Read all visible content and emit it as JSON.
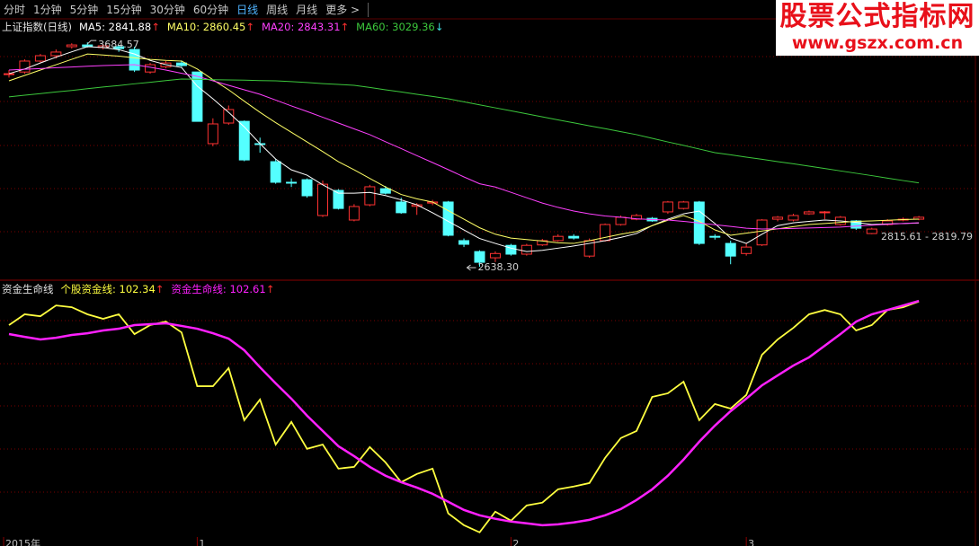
{
  "toolbar": {
    "tabs": [
      "分时",
      "1分钟",
      "5分钟",
      "15分钟",
      "30分钟",
      "60分钟",
      "日线",
      "周线",
      "月线",
      "更多 >"
    ],
    "active": 6
  },
  "watermark": {
    "title": "股票公式指标网",
    "url": "www.gszx.com.cn"
  },
  "chart_data": [
    {
      "type": "candlestick",
      "title": "上证指数(日线)",
      "categories": [
        "2015年",
        null,
        null,
        null,
        null,
        null,
        null,
        null,
        null,
        null,
        null,
        null,
        "1",
        null,
        null,
        null,
        null,
        null,
        null,
        null,
        null,
        null,
        null,
        null,
        null,
        null,
        null,
        null,
        null,
        null,
        null,
        null,
        "2",
        null,
        null,
        null,
        null,
        null,
        null,
        null,
        null,
        null,
        null,
        null,
        null,
        null,
        null,
        "3",
        null,
        null,
        null,
        null,
        null,
        null,
        null,
        null,
        null,
        null,
        null
      ],
      "open": [
        3534,
        3546,
        3597,
        3622,
        3664,
        3672,
        3660,
        3664,
        3651,
        3546,
        3570,
        3588,
        3546,
        3212,
        3308,
        3316,
        3212,
        3128,
        3032,
        3044,
        2877,
        2994,
        2856,
        2927,
        3002,
        2940,
        2920,
        2935,
        2940,
        2760,
        2709,
        2680,
        2738,
        2697,
        2740,
        2760,
        2780,
        2688,
        2760,
        2835,
        2860,
        2864,
        2894,
        2910,
        2940,
        2780,
        2747,
        2700,
        2740,
        2860,
        2856,
        2885,
        2890,
        2835,
        2852,
        2793,
        2835,
        2856,
        2860
      ],
      "high": [
        3555,
        3605,
        3630,
        3651,
        3680,
        3684.57,
        3676,
        3672,
        3664,
        3588,
        3597,
        3600,
        3546,
        3330,
        3390,
        3320,
        3240,
        3140,
        3050,
        3050,
        3040,
        3000,
        2930,
        3020,
        3015,
        2960,
        2935,
        2950,
        2945,
        2770,
        2715,
        2710,
        2745,
        2745,
        2768,
        2790,
        2790,
        2770,
        2840,
        2877,
        2885,
        2870,
        2945,
        2945,
        2945,
        2790,
        2760,
        2745,
        2860,
        2875,
        2885,
        2900,
        2898,
        2875,
        2856,
        2820,
        2860,
        2868,
        2875
      ],
      "low": [
        3520,
        3538,
        3590,
        3609,
        3655,
        3660,
        3651,
        3640,
        3546,
        3538,
        3563,
        3570,
        3316,
        3200,
        3300,
        3130,
        3170,
        3025,
        3010,
        2960,
        2870,
        2905,
        2850,
        2920,
        2975,
        2885,
        2880,
        2925,
        2780,
        2730,
        2638.3,
        2660,
        2690,
        2690,
        2735,
        2755,
        2765,
        2680,
        2755,
        2830,
        2855,
        2848,
        2885,
        2905,
        2740,
        2765,
        2650,
        2690,
        2735,
        2850,
        2850,
        2880,
        2860,
        2830,
        2810,
        2790,
        2830,
        2850,
        2855
      ],
      "close": [
        3538,
        3597,
        3622,
        3639,
        3672,
        3664,
        3668,
        3655,
        3555,
        3580,
        3588,
        3576,
        3316,
        3304,
        3371,
        3136,
        3210,
        3032,
        3030,
        2969,
        3023,
        2910,
        2919,
        3011,
        2981,
        2890,
        2927,
        2940,
        2785,
        2743,
        2659,
        2700,
        2697,
        2738,
        2760,
        2780,
        2772,
        2760,
        2835,
        2869,
        2877,
        2852,
        2940,
        2940,
        2747,
        2778,
        2688,
        2730,
        2856,
        2869,
        2877,
        2894,
        2894,
        2869,
        2818,
        2814,
        2852,
        2860,
        2869
      ],
      "up_color": "#ff3232",
      "down_color": "#54ffff",
      "ylim": [
        2584,
        3756
      ],
      "grid": true,
      "high_label": "3684.57",
      "low_label": "2638.30",
      "range_label": "2815.61 - 2819.79",
      "series": [
        {
          "name": "MA5",
          "color": "#ffffff",
          "legend_value": "2841.88",
          "arrow": "↑",
          "arrow_color": "#ff3030",
          "values": [
            3538,
            3560,
            3588,
            3615,
            3640,
            3664,
            3660,
            3650,
            3630,
            3600,
            3580,
            3567,
            3480,
            3421,
            3358,
            3290,
            3212,
            3140,
            3090,
            3065,
            3020,
            2981,
            2981,
            2985,
            2970,
            2950,
            2927,
            2890,
            2850,
            2810,
            2770,
            2747,
            2725,
            2709,
            2715,
            2725,
            2735,
            2747,
            2760,
            2775,
            2793,
            2830,
            2860,
            2885,
            2898,
            2840,
            2772,
            2747,
            2790,
            2830,
            2843,
            2850,
            2856,
            2852,
            2845,
            2835,
            2838,
            2840,
            2841.88
          ]
        },
        {
          "name": "MA10",
          "color": "#ffff66",
          "legend_value": "2860.45",
          "arrow": "↑",
          "arrow_color": "#ff3030",
          "values": [
            3505,
            3530,
            3555,
            3580,
            3605,
            3630,
            3625,
            3620,
            3612,
            3605,
            3600,
            3597,
            3560,
            3510,
            3463,
            3410,
            3358,
            3310,
            3265,
            3220,
            3175,
            3128,
            3090,
            3050,
            3010,
            2975,
            2955,
            2940,
            2900,
            2860,
            2820,
            2790,
            2772,
            2765,
            2758,
            2750,
            2747,
            2760,
            2775,
            2790,
            2802,
            2830,
            2855,
            2877,
            2850,
            2810,
            2785,
            2795,
            2805,
            2815,
            2825,
            2835,
            2840,
            2845,
            2850,
            2852,
            2855,
            2858,
            2860.45
          ]
        },
        {
          "name": "MA20",
          "color": "#ff40ff",
          "legend_value": "2843.31",
          "arrow": "↑",
          "arrow_color": "#ff3030",
          "values": [
            3555,
            3559,
            3562,
            3566,
            3569,
            3573,
            3576,
            3578,
            3580,
            3568,
            3555,
            3540,
            3526,
            3505,
            3484,
            3463,
            3442,
            3415,
            3388,
            3362,
            3335,
            3308,
            3281,
            3254,
            3221,
            3189,
            3156,
            3124,
            3091,
            3057,
            3025,
            3010,
            2985,
            2960,
            2935,
            2915,
            2898,
            2885,
            2875,
            2869,
            2862,
            2858,
            2856,
            2850,
            2842,
            2834,
            2826,
            2818,
            2814,
            2815,
            2817,
            2819,
            2821,
            2823,
            2828,
            2832,
            2836,
            2840,
            2843.31
          ]
        },
        {
          "name": "MA60",
          "color": "#3cc83c",
          "legend_value": "3029.36",
          "arrow": "↓",
          "arrow_color": "#40e0e0",
          "values": [
            3430,
            3438,
            3445,
            3453,
            3460,
            3468,
            3476,
            3483,
            3491,
            3498,
            3506,
            3513,
            3512,
            3510,
            3509,
            3508,
            3506,
            3505,
            3501,
            3497,
            3492,
            3488,
            3484,
            3474,
            3463,
            3453,
            3442,
            3432,
            3421,
            3407,
            3393,
            3379,
            3365,
            3351,
            3337,
            3323,
            3309,
            3295,
            3282,
            3268,
            3254,
            3237,
            3220,
            3204,
            3187,
            3170,
            3160,
            3149,
            3139,
            3128,
            3118,
            3107,
            3096,
            3085,
            3074,
            3063,
            3051,
            3040,
            3029.36
          ]
        }
      ]
    },
    {
      "type": "line",
      "title": "资金生命线",
      "ylim": [
        -10,
        111
      ],
      "grid": true,
      "series": [
        {
          "name": "个股资金线",
          "color": "#ffff40",
          "legend_value": "102.34",
          "arrow": "↑",
          "arrow_color": "#ff3030",
          "values": [
            91.4,
            96.4,
            95.5,
            100.5,
            99.7,
            96.4,
            94.3,
            96.4,
            87.2,
            91.4,
            93.0,
            88.0,
            63.0,
            63.0,
            71.4,
            47.2,
            56.8,
            35.9,
            46.4,
            33.9,
            35.9,
            24.7,
            25.5,
            34.7,
            27.6,
            18.4,
            22.2,
            24.7,
            3.9,
            -1.6,
            -4.9,
            4.7,
            0.5,
            7.6,
            8.9,
            15.1,
            16.4,
            18.0,
            29.7,
            38.9,
            42.2,
            58.0,
            59.7,
            65.1,
            47.2,
            54.7,
            52.6,
            58.9,
            77.6,
            84.7,
            90.1,
            96.4,
            98.4,
            96.4,
            88.9,
            91.4,
            98.4,
            99.7,
            102.34
          ]
        },
        {
          "name": "资金生命线",
          "color": "#ff20ff",
          "legend_value": "102.61",
          "arrow": "↑",
          "arrow_color": "#ff3030",
          "values": [
            87.2,
            85.9,
            84.7,
            85.5,
            86.8,
            87.6,
            88.9,
            89.7,
            91.4,
            91.8,
            92.2,
            91.0,
            89.7,
            87.6,
            85.1,
            79.7,
            71.8,
            64.3,
            57.2,
            49.3,
            42.2,
            35.1,
            30.5,
            25.5,
            21.4,
            18.4,
            15.9,
            13.0,
            9.3,
            5.5,
            3.0,
            1.4,
            0.1,
            -0.7,
            -1.6,
            -1.2,
            -0.3,
            0.9,
            3.0,
            5.9,
            10.1,
            15.1,
            21.4,
            28.9,
            37.2,
            44.7,
            51.4,
            57.2,
            63.4,
            68.0,
            72.6,
            76.4,
            81.8,
            87.2,
            93.0,
            96.4,
            98.4,
            100.5,
            102.61
          ]
        }
      ]
    }
  ]
}
